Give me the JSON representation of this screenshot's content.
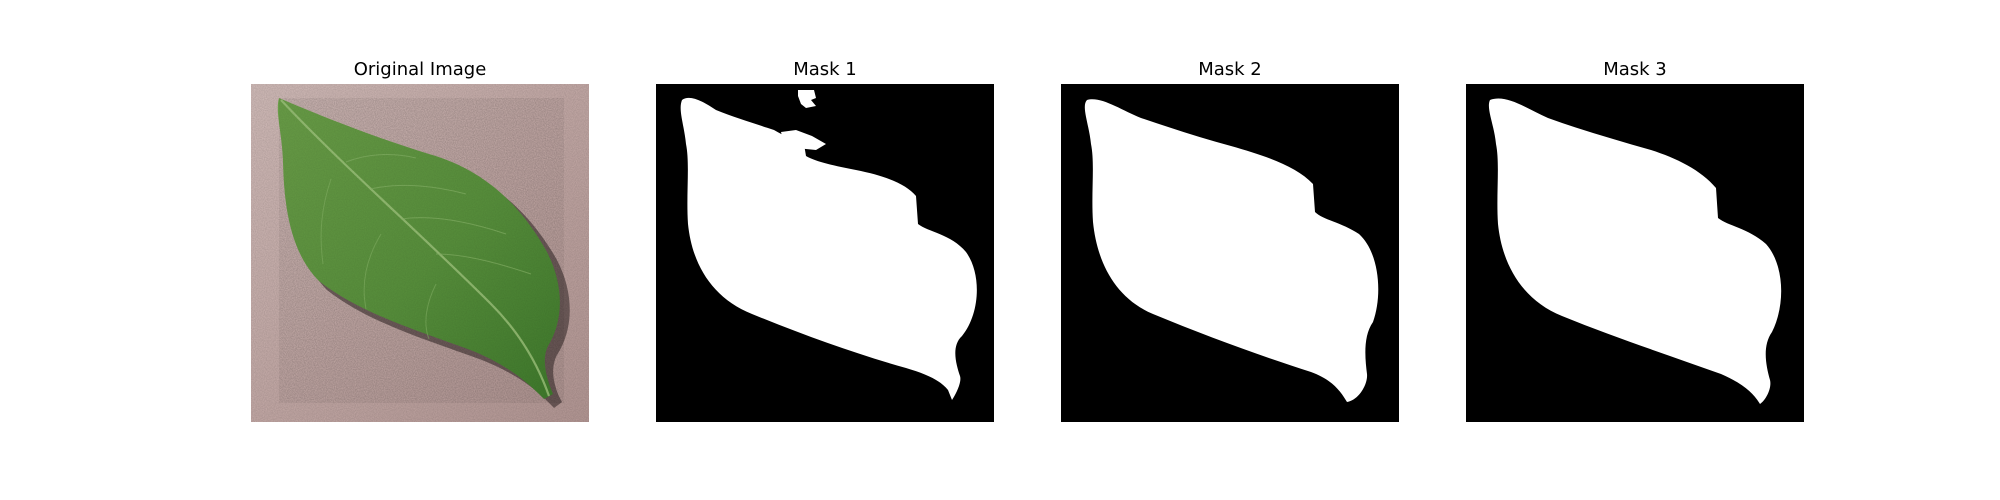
{
  "figure": {
    "panels": [
      {
        "title": "Original Image",
        "kind": "photo"
      },
      {
        "title": "Mask 1",
        "kind": "mask"
      },
      {
        "title": "Mask 2",
        "kind": "mask"
      },
      {
        "title": "Mask 3",
        "kind": "mask"
      }
    ]
  },
  "colors": {
    "background": "#ffffff",
    "mask_background": "#000000",
    "mask_foreground": "#ffffff",
    "leaf_green": "#5a8f3e",
    "leaf_dark": "#3f6e2a",
    "surface_pink": "#c9aeae"
  }
}
